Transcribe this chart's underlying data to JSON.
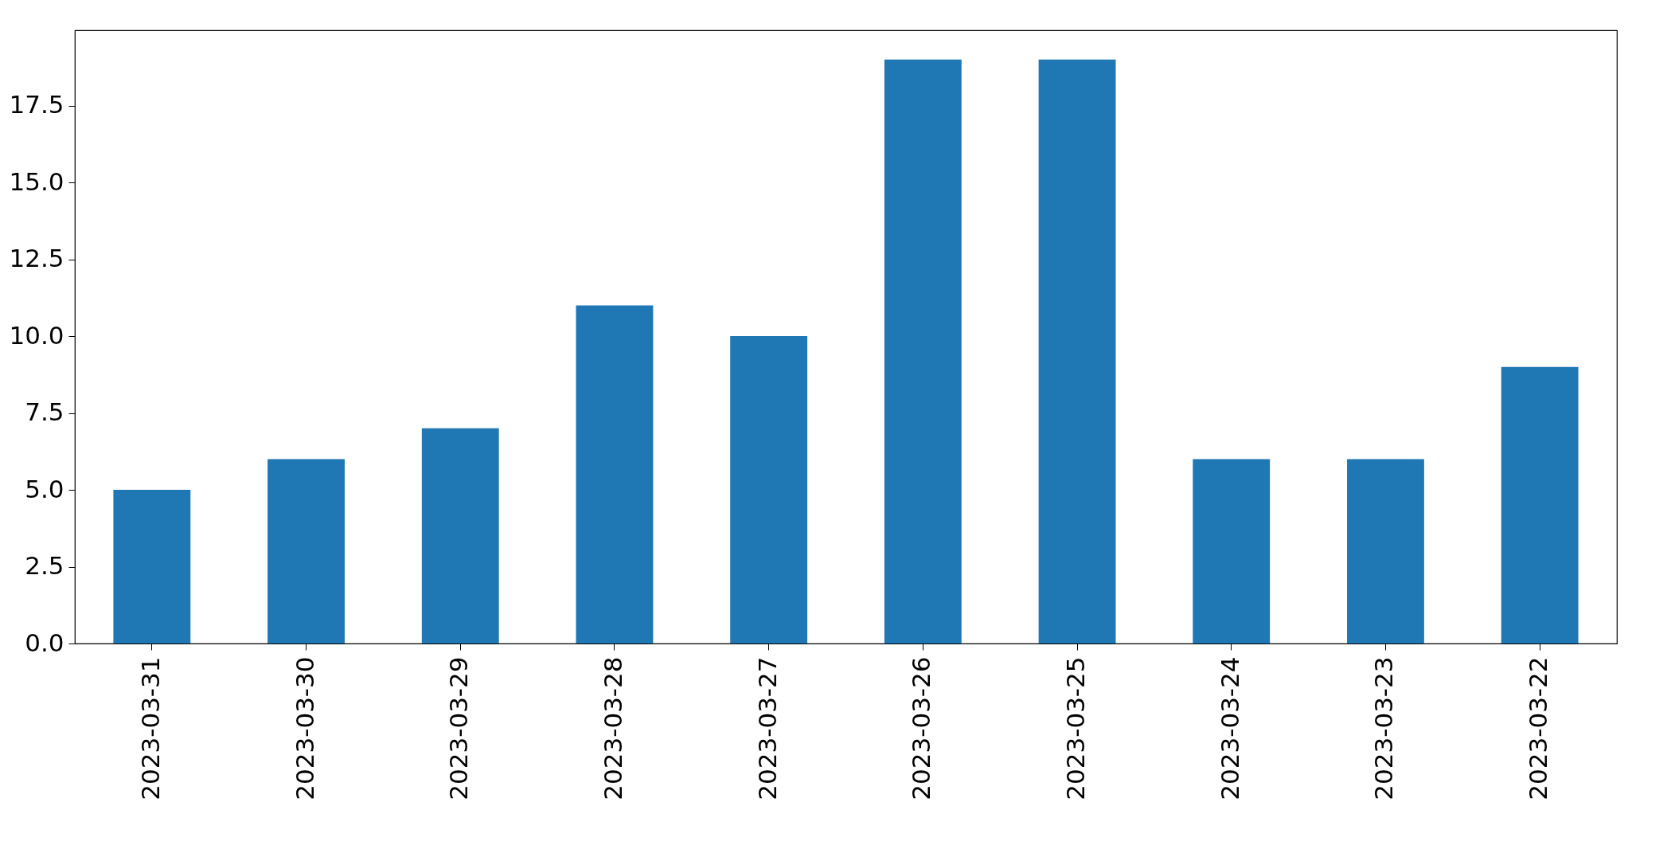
{
  "chart_data": {
    "type": "bar",
    "categories": [
      "2023-03-31",
      "2023-03-30",
      "2023-03-29",
      "2023-03-28",
      "2023-03-27",
      "2023-03-26",
      "2023-03-25",
      "2023-03-24",
      "2023-03-23",
      "2023-03-22"
    ],
    "values": [
      5,
      6,
      7,
      11,
      10,
      19,
      19,
      6,
      6,
      9
    ],
    "color": "#1f77b4",
    "ylim": [
      0,
      19.95
    ],
    "yticks": [
      {
        "value": 0,
        "label": "0.0"
      },
      {
        "value": 2.5,
        "label": "2.5"
      },
      {
        "value": 5,
        "label": "5.0"
      },
      {
        "value": 7.5,
        "label": "7.5"
      },
      {
        "value": 10,
        "label": "10.0"
      },
      {
        "value": 12.5,
        "label": "12.5"
      },
      {
        "value": 15,
        "label": "15.0"
      },
      {
        "value": 17.5,
        "label": "17.5"
      }
    ],
    "grid": false
  }
}
